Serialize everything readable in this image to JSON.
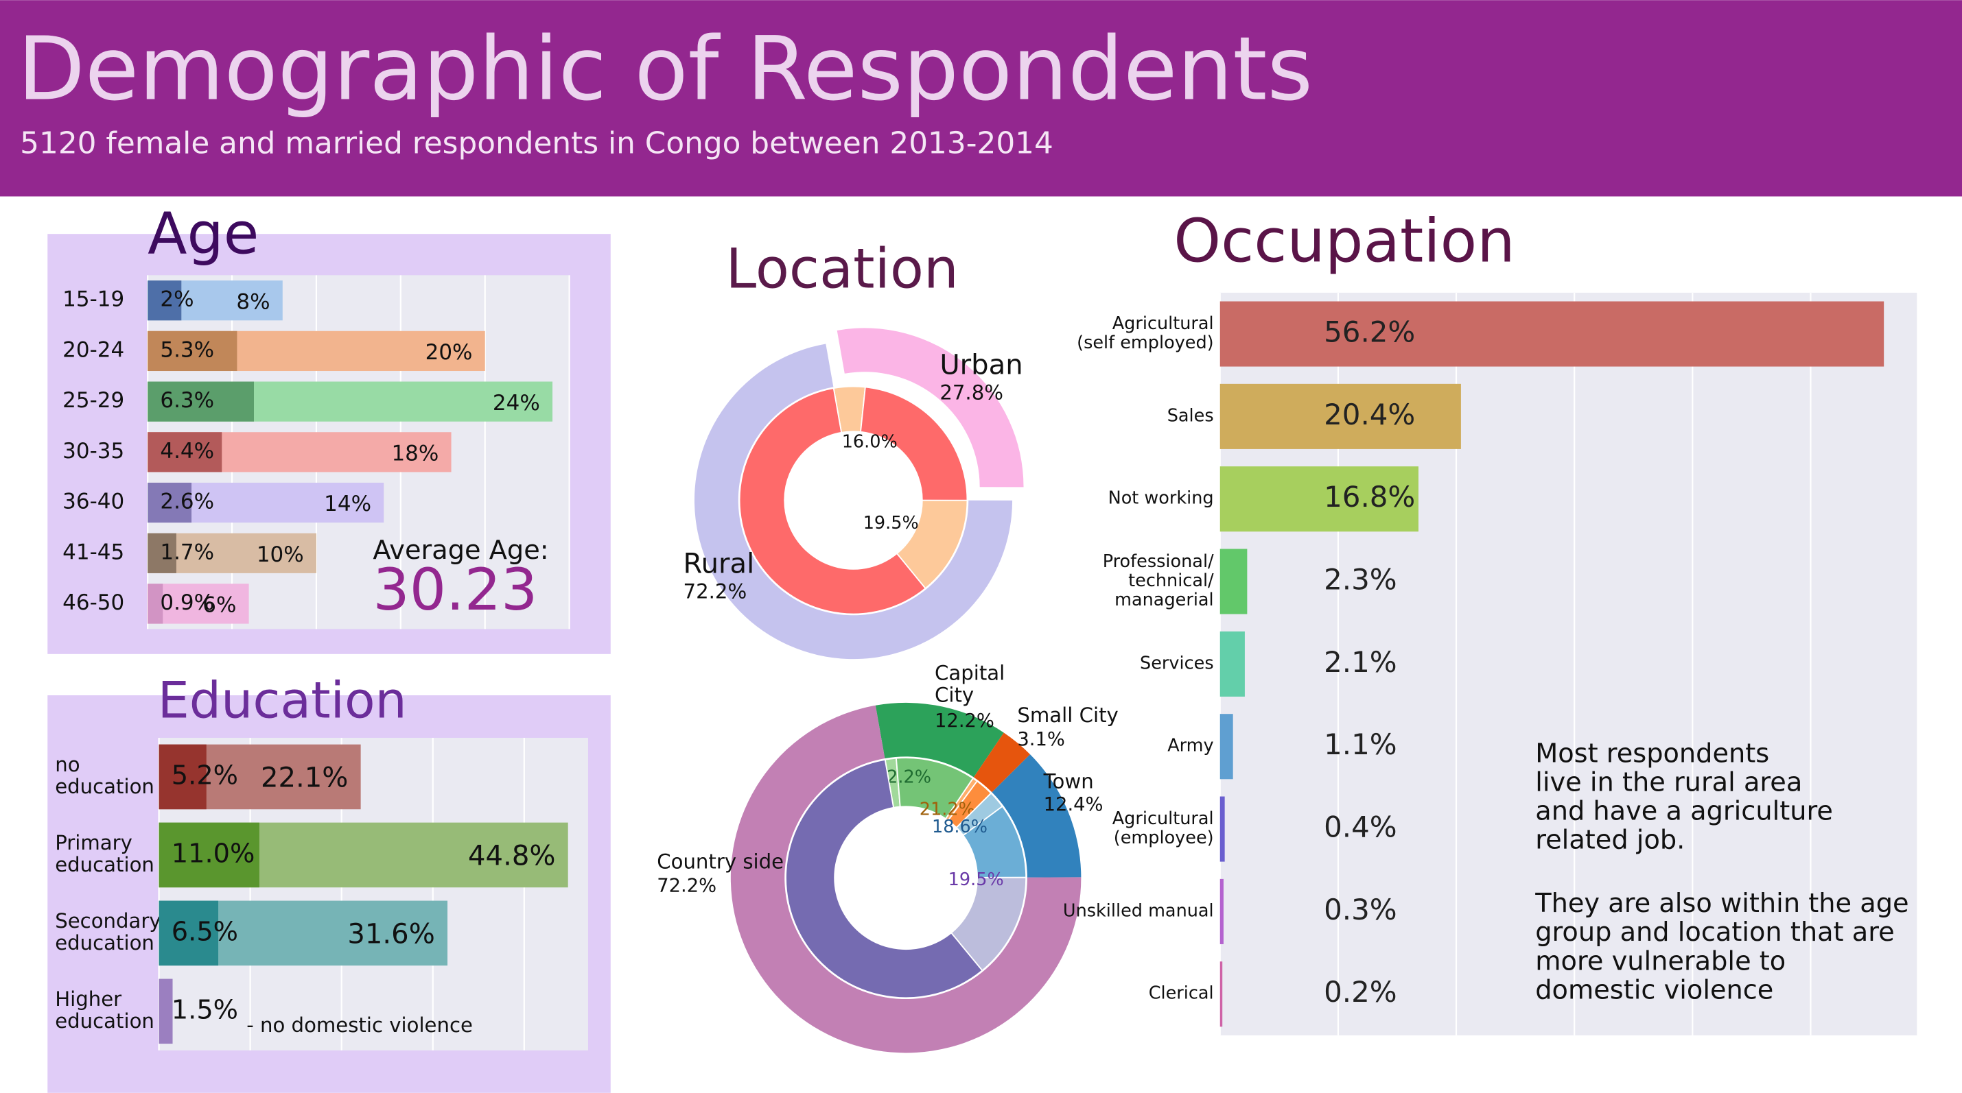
{
  "header": {
    "title": "Demographic of Respondents",
    "subtitle": "5120 female and married respondents in Congo between 2013-2014"
  },
  "chart_data": [
    {
      "type": "hbar",
      "title": "Age",
      "categories": [
        "15-19",
        "20-24",
        "25-29",
        "30-35",
        "36-40",
        "41-45",
        "46-50"
      ],
      "series": [
        {
          "colors": [
            "#a8c8ec",
            "#f2b48e",
            "#98dba5",
            "#f4aaa8",
            "#cfc4f4",
            "#d8bca4",
            "#f0b6e0"
          ],
          "values": [
            8,
            20,
            24,
            18,
            14,
            10,
            6
          ],
          "value_labels": [
            "8%",
            "20%",
            "24%",
            "18%",
            "14%",
            "10%",
            "6%"
          ]
        },
        {
          "colors": [
            "#4e6fa8",
            "#c18759",
            "#5b9e6b",
            "#b35a5a",
            "#8479b6",
            "#8d7866",
            "#d294c4"
          ],
          "values": [
            2,
            5.3,
            6.3,
            4.4,
            2.6,
            1.7,
            0.9
          ],
          "value_labels": [
            "2%",
            "5.3%",
            "6.3%",
            "4.4%",
            "2.6%",
            "1.7%",
            "0.9%"
          ]
        }
      ],
      "xlim": [
        0,
        25
      ],
      "xticks": [
        0,
        5,
        10,
        15,
        20,
        25
      ],
      "grid": true,
      "annotation": {
        "label": "Average Age:",
        "value": 30.23
      }
    },
    {
      "type": "donut",
      "title": "Location",
      "categories": [
        "Urban",
        "Rural"
      ],
      "values": [
        27.8,
        72.2
      ],
      "value_labels": [
        "27.8%",
        "72.2%"
      ],
      "colors": [
        "#fbb5e6",
        "#c5c3ee"
      ],
      "explode": [
        true,
        false
      ],
      "inner": {
        "values": [
          16.0,
          19.5
        ],
        "value_labels": [
          "16.0%",
          "19.5%"
        ],
        "colors": [
          [
            "#fdc99a",
            "#fe6a6a"
          ],
          [
            "#fdc99a",
            "#fe6a6a"
          ]
        ]
      }
    },
    {
      "type": "donut",
      "categories": [
        "Capital\nCity",
        "Small City",
        "Town",
        "Country side"
      ],
      "values": [
        12.2,
        3.1,
        12.4,
        72.2
      ],
      "value_labels": [
        "12.2%",
        "3.1%",
        "12.4%",
        "72.2%"
      ],
      "colors": [
        "#2ca25a",
        "#e6550d",
        "#3182bd",
        "#c280b4"
      ],
      "explode": [
        false,
        false,
        false,
        false
      ],
      "inner": {
        "values": [
          12.2,
          21.2,
          18.6,
          19.5
        ],
        "value_labels": [
          "12.2%",
          "21.2%",
          "18.6%",
          "19.5%"
        ],
        "colors": [
          [
            "#a1d99b",
            "#74c476"
          ],
          [
            "#fdae6b",
            "#fd8d3c"
          ],
          [
            "#9ecae1",
            "#6baed6"
          ],
          [
            "#bcbddc",
            "#756bb1"
          ]
        ],
        "label_colors": [
          "#1e6b30",
          "#a0600a",
          "#1f5a8f",
          "#6a3aa8"
        ]
      }
    },
    {
      "type": "hbar",
      "title": "Education",
      "categories": [
        "no\neducation",
        "Primary\neducation",
        "Secondary\neducation",
        "Higher\neducation"
      ],
      "series": [
        {
          "colors": [
            "#b97a76",
            "#97bb77",
            "#76b4b6",
            null
          ],
          "values": [
            22.1,
            44.8,
            31.6,
            null
          ],
          "value_labels": [
            "22.1%",
            "44.8%",
            "31.6%",
            null
          ]
        },
        {
          "colors": [
            "#96342e",
            "#5a962e",
            "#2a8a8e",
            "#9b7fc0"
          ],
          "values": [
            5.2,
            11.0,
            6.5,
            1.5
          ],
          "value_labels": [
            "5.2%",
            "11.0%",
            "6.5%",
            "1.5%"
          ]
        }
      ],
      "xlim": [
        0,
        47
      ],
      "xticks": [
        0,
        10,
        20,
        30,
        40
      ],
      "grid": true,
      "note": "- no domestic violence"
    },
    {
      "type": "hbar",
      "title": "Occupation",
      "categories": [
        "Agricultural\n(self employed)",
        "Sales",
        "Not working",
        "Professional/\ntechnical/\nmanagerial",
        "Services",
        "Army",
        "Agricultural\n(employee)",
        "Unskilled manual",
        "Clerical"
      ],
      "series": [
        {
          "colors": [
            "#c96b65",
            "#cfac5c",
            "#a7cf5e",
            "#62c86a",
            "#63cfaa",
            "#5f9fd1",
            "#6a5fcf",
            "#b463cf",
            "#cf63a7"
          ],
          "values": [
            56.2,
            20.4,
            16.8,
            2.3,
            2.1,
            1.1,
            0.4,
            0.3,
            0.2
          ],
          "value_labels": [
            "56.2%",
            "20.4%",
            "16.8%",
            "2.3%",
            "2.1%",
            "1.1%",
            "0.4%",
            "0.3%",
            "0.2%"
          ]
        }
      ],
      "xlim": [
        0,
        59
      ],
      "xticks": [
        0,
        10,
        20,
        30,
        40,
        50
      ],
      "grid": true
    }
  ],
  "notes": [
    "Most respondents\nlive in the rural area\nand have a agriculture\nrelated job.",
    "They are also within the age\ngroup and location that are\nmore vulnerable to\ndomestic violence"
  ]
}
